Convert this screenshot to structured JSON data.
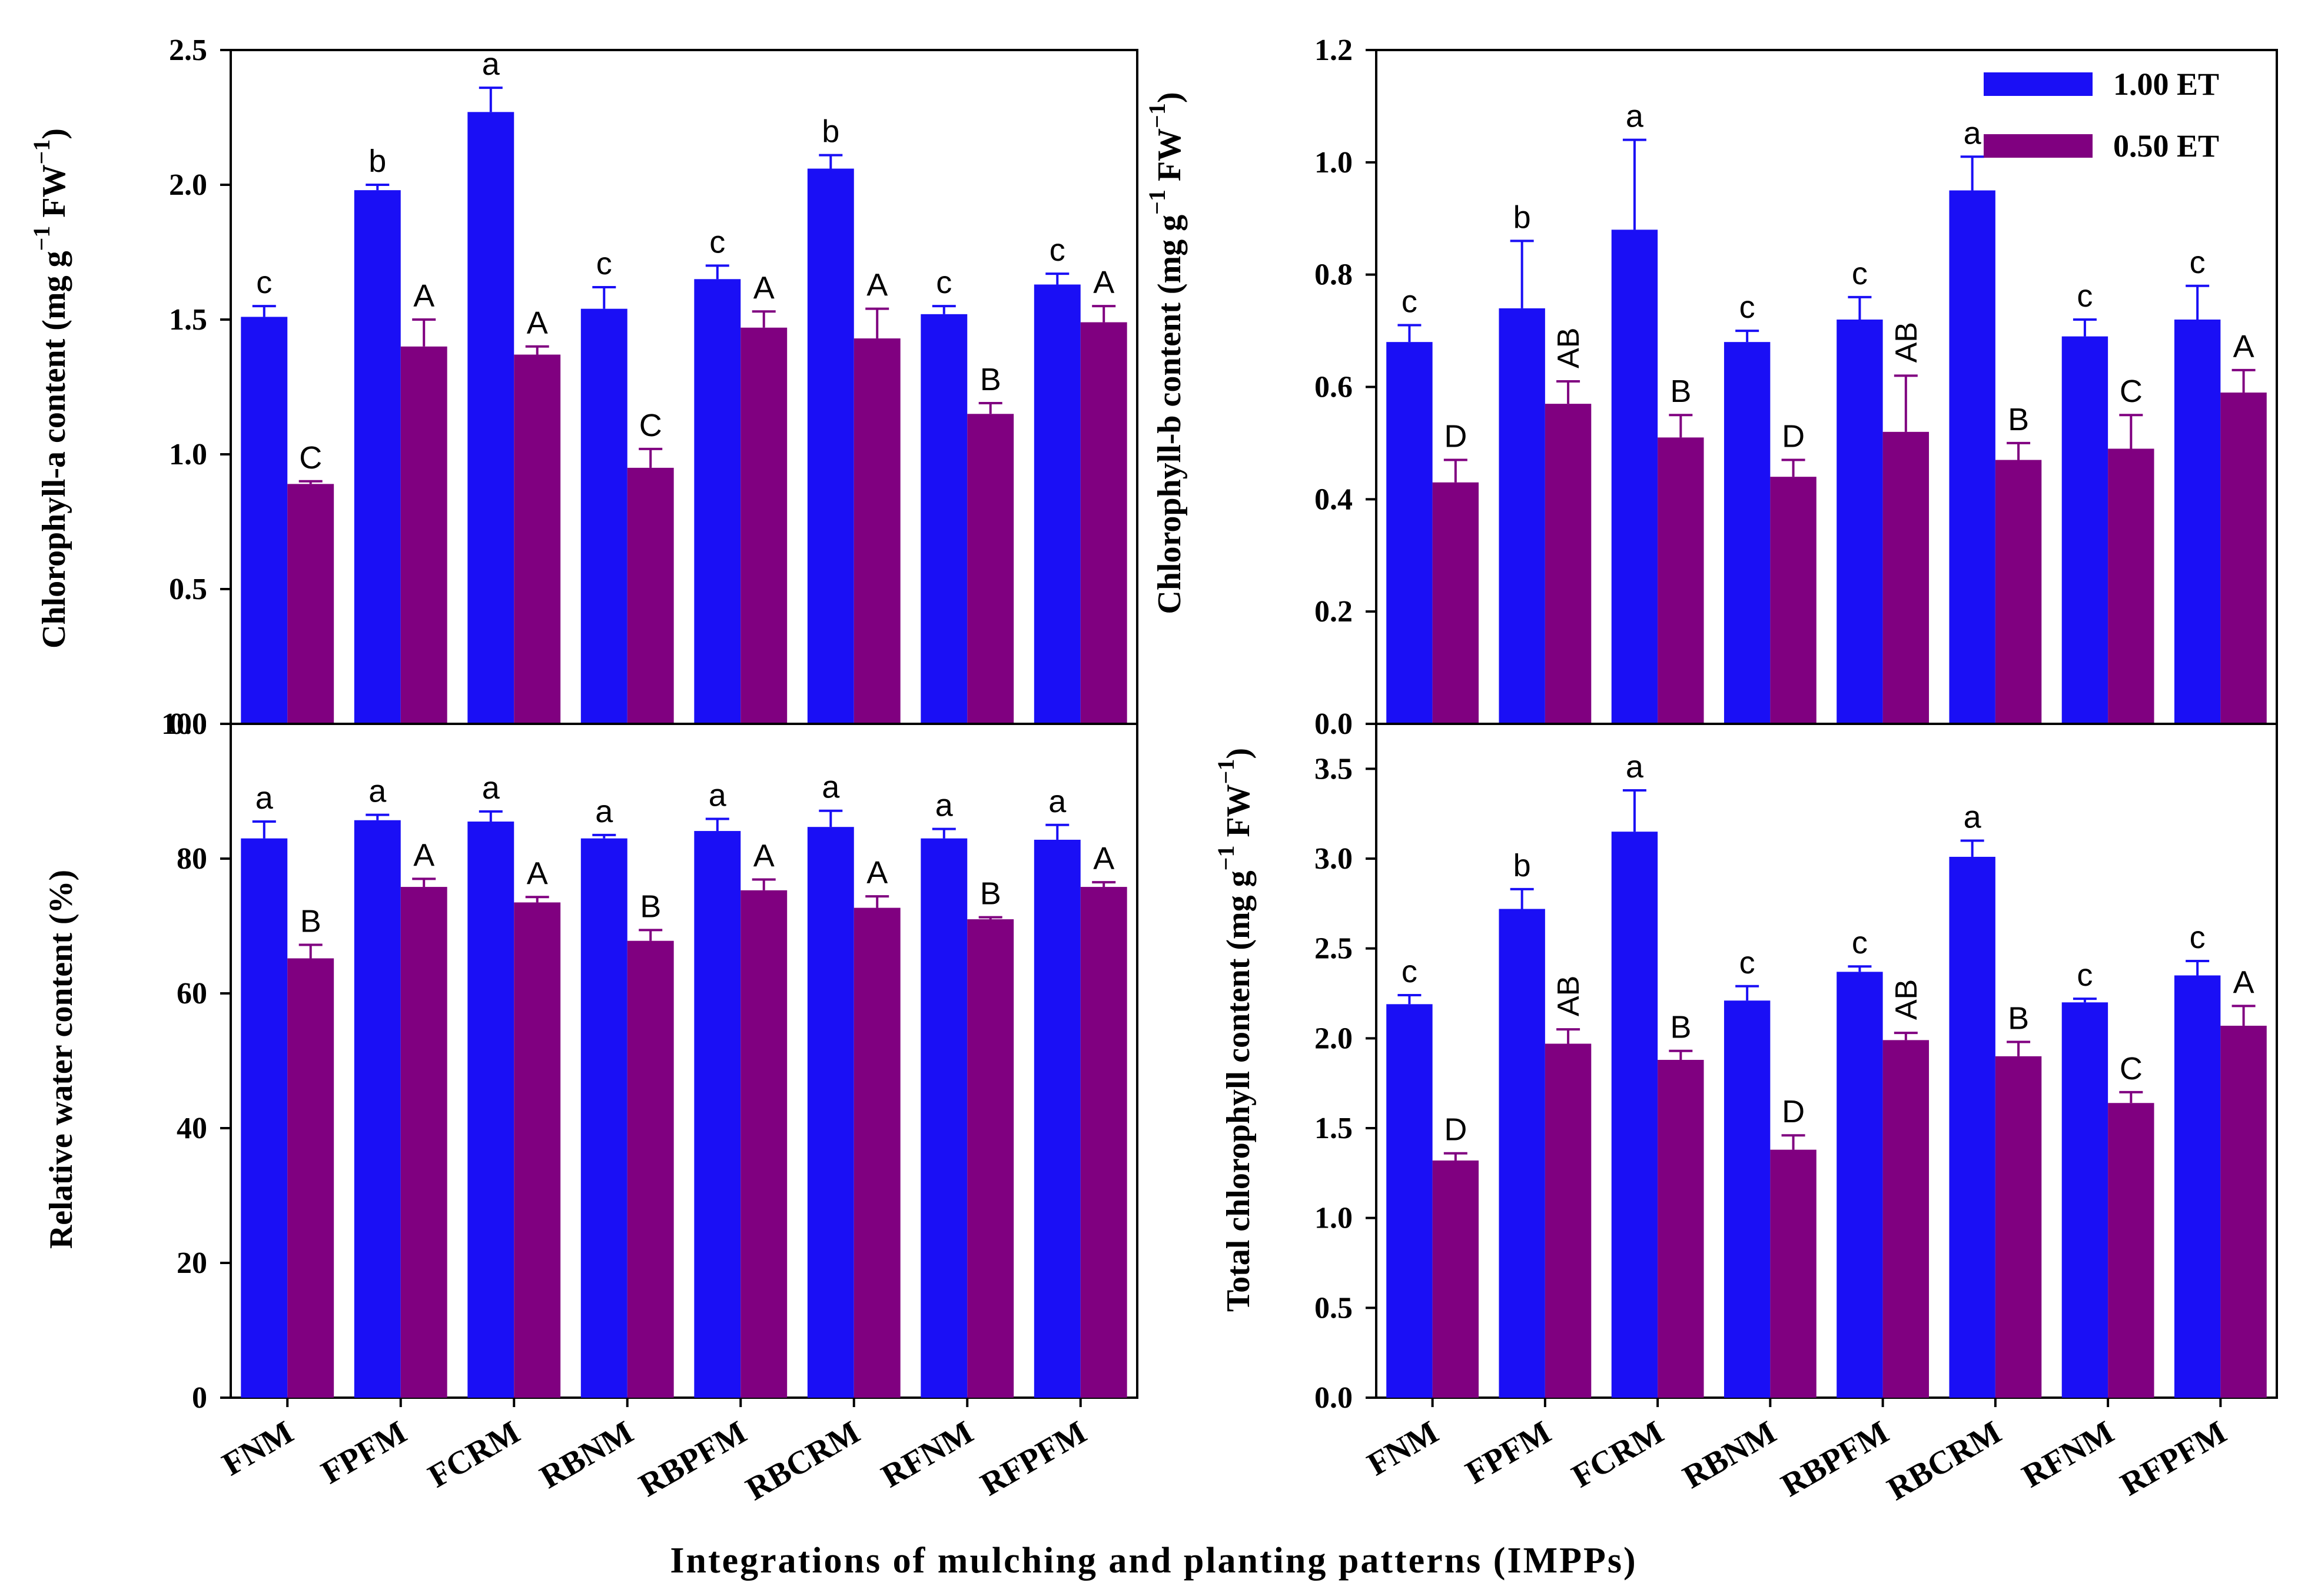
{
  "figure": {
    "xlabel": "Integrations of mulching and planting patterns (IMPPs)",
    "categories": [
      "FNM",
      "FPFM",
      "FCRM",
      "RBNM",
      "RBPFM",
      "RBCRM",
      "RFNM",
      "RFPFM"
    ],
    "legend": [
      {
        "name": "1.00 ET",
        "color": "#1a0ff5"
      },
      {
        "name": "0.50 ET",
        "color": "#800080"
      }
    ],
    "colors": {
      "s1": "#1a0ff5",
      "s2": "#800080"
    }
  },
  "chart_data": [
    {
      "id": "chlorophyll-a",
      "type": "bar",
      "ylabel": "Chlorophyll-a content (mg g",
      "ylabel_sup1": "−1",
      "ylabel_mid": " FW",
      "ylabel_sup2": "−1",
      "ylabel_end": ")",
      "ylim": [
        0,
        2.5
      ],
      "yticks": [
        0.0,
        0.5,
        1.0,
        1.5,
        2.0,
        2.5
      ],
      "ytick_labels": [
        "0.0",
        "0.5",
        "1.0",
        "1.5",
        "2.0",
        "2.5"
      ],
      "categories": [
        "FNM",
        "FPFM",
        "FCRM",
        "RBNM",
        "RBPFM",
        "RBCRM",
        "RFNM",
        "RFPFM"
      ],
      "series": [
        {
          "name": "1.00 ET",
          "values": [
            1.51,
            1.98,
            2.27,
            1.54,
            1.65,
            2.06,
            1.52,
            1.63
          ],
          "errors": [
            0.04,
            0.02,
            0.09,
            0.08,
            0.05,
            0.05,
            0.03,
            0.04
          ],
          "letters": [
            "c",
            "b",
            "a",
            "c",
            "c",
            "b",
            "c",
            "c"
          ]
        },
        {
          "name": "0.50 ET",
          "values": [
            0.89,
            1.4,
            1.37,
            0.95,
            1.47,
            1.43,
            1.15,
            1.49
          ],
          "errors": [
            0.01,
            0.1,
            0.03,
            0.07,
            0.06,
            0.11,
            0.04,
            0.06
          ],
          "letters": [
            "C",
            "A",
            "A",
            "C",
            "A",
            "A",
            "B",
            "A"
          ]
        }
      ]
    },
    {
      "id": "chlorophyll-b",
      "type": "bar",
      "ylabel": "Chlorophyll-b content (mg g",
      "ylabel_sup1": "−1",
      "ylabel_mid": " FW",
      "ylabel_sup2": "−1",
      "ylabel_end": ")",
      "ylim": [
        0,
        1.2
      ],
      "yticks": [
        0.0,
        0.2,
        0.4,
        0.6,
        0.8,
        1.0,
        1.2
      ],
      "ytick_labels": [
        "0.0",
        "0.2",
        "0.4",
        "0.6",
        "0.8",
        "1.0",
        "1.2"
      ],
      "categories": [
        "FNM",
        "FPFM",
        "FCRM",
        "RBNM",
        "RBPFM",
        "RBCRM",
        "RFNM",
        "RFPFM"
      ],
      "series": [
        {
          "name": "1.00 ET",
          "values": [
            0.68,
            0.74,
            0.88,
            0.68,
            0.72,
            0.95,
            0.69,
            0.72
          ],
          "errors": [
            0.03,
            0.12,
            0.16,
            0.02,
            0.04,
            0.06,
            0.03,
            0.06
          ],
          "letters": [
            "c",
            "b",
            "a",
            "c",
            "c",
            "a",
            "c",
            "c"
          ]
        },
        {
          "name": "0.50 ET",
          "values": [
            0.43,
            0.57,
            0.51,
            0.44,
            0.52,
            0.47,
            0.49,
            0.59
          ],
          "errors": [
            0.04,
            0.04,
            0.04,
            0.03,
            0.1,
            0.03,
            0.06,
            0.04
          ],
          "letters": [
            "D",
            "AB",
            "B",
            "D",
            "AB",
            "B",
            "C",
            "A"
          ]
        }
      ]
    },
    {
      "id": "relative-water",
      "type": "bar",
      "ylabel": "Relative water content (%)",
      "ylim": [
        0,
        100
      ],
      "yticks": [
        0,
        20,
        40,
        60,
        80,
        100
      ],
      "ytick_labels": [
        "0",
        "20",
        "40",
        "60",
        "80",
        "100"
      ],
      "categories": [
        "FNM",
        "FPFM",
        "FCRM",
        "RBNM",
        "RBPFM",
        "RBCRM",
        "RFNM",
        "RFPFM"
      ],
      "series": [
        {
          "name": "1.00 ET",
          "values": [
            83.0,
            85.7,
            85.5,
            83.0,
            84.1,
            84.7,
            83.0,
            82.8
          ],
          "errors": [
            2.5,
            0.8,
            1.5,
            0.5,
            1.8,
            2.4,
            1.4,
            2.2
          ],
          "letters": [
            "a",
            "a",
            "a",
            "a",
            "a",
            "a",
            "a",
            "a"
          ]
        },
        {
          "name": "0.50 ET",
          "values": [
            65.2,
            75.8,
            73.5,
            67.8,
            75.3,
            72.7,
            71.0,
            75.8
          ],
          "errors": [
            2.0,
            1.2,
            0.8,
            1.6,
            1.6,
            1.7,
            0.3,
            0.7
          ],
          "letters": [
            "B",
            "A",
            "A",
            "B",
            "A",
            "A",
            "B",
            "A"
          ]
        }
      ]
    },
    {
      "id": "total-chlorophyll",
      "type": "bar",
      "ylabel": "Total chlorophyll content (mg g",
      "ylabel_sup1": "−1",
      "ylabel_mid": " FW",
      "ylabel_sup2": "−1",
      "ylabel_end": ")",
      "ylim": [
        0,
        3.75
      ],
      "yticks": [
        0.0,
        0.5,
        1.0,
        1.5,
        2.0,
        2.5,
        3.0,
        3.5
      ],
      "ytick_labels": [
        "0.0",
        "0.5",
        "1.0",
        "1.5",
        "2.0",
        "2.5",
        "3.0",
        "3.5"
      ],
      "categories": [
        "FNM",
        "FPFM",
        "FCRM",
        "RBNM",
        "RBPFM",
        "RBCRM",
        "RFNM",
        "RFPFM"
      ],
      "series": [
        {
          "name": "1.00 ET",
          "values": [
            2.19,
            2.72,
            3.15,
            2.21,
            2.37,
            3.01,
            2.2,
            2.35
          ],
          "errors": [
            0.05,
            0.11,
            0.23,
            0.08,
            0.03,
            0.09,
            0.02,
            0.08
          ],
          "letters": [
            "c",
            "b",
            "a",
            "c",
            "c",
            "a",
            "c",
            "c"
          ]
        },
        {
          "name": "0.50 ET",
          "values": [
            1.32,
            1.97,
            1.88,
            1.38,
            1.99,
            1.9,
            1.64,
            2.07
          ],
          "errors": [
            0.04,
            0.08,
            0.05,
            0.08,
            0.04,
            0.08,
            0.06,
            0.11
          ],
          "letters": [
            "D",
            "AB",
            "B",
            "D",
            "AB",
            "B",
            "C",
            "A"
          ]
        }
      ]
    }
  ]
}
